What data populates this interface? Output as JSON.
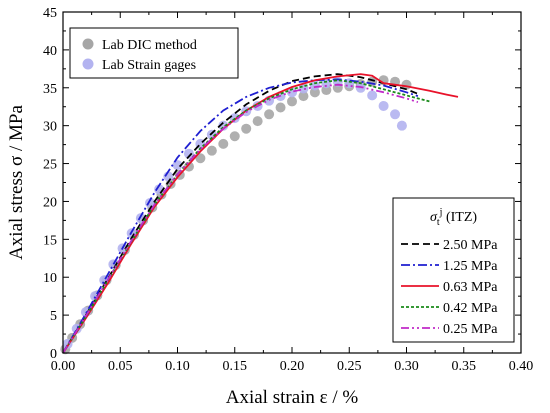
{
  "chart_data": {
    "type": "line",
    "xlabel": "Axial strain ε / %",
    "ylabel": "Axial stress σ / MPa",
    "xlim": [
      0,
      0.4
    ],
    "ylim": [
      0,
      45
    ],
    "xticks": [
      "0.00",
      "0.05",
      "0.10",
      "0.15",
      "0.20",
      "0.25",
      "0.30",
      "0.35",
      "0.40"
    ],
    "yticks": [
      "0",
      "5",
      "10",
      "15",
      "20",
      "25",
      "30",
      "35",
      "40",
      "45"
    ],
    "grid": false,
    "legend_markers": {
      "placement": "top-left",
      "entries": [
        "Lab DIC method",
        "Lab Strain gages"
      ]
    },
    "legend_lines": {
      "placement": "bottom-right",
      "title": "σ_t^j (ITZ)",
      "title_main": "σ",
      "title_sub": "t",
      "title_sup": "j",
      "title_rest": " (ITZ)"
    },
    "scatter_series": [
      {
        "name": "Lab DIC method",
        "color": "#a6a6a6",
        "points": [
          [
            0.002,
            0.5
          ],
          [
            0.008,
            2
          ],
          [
            0.015,
            3.8
          ],
          [
            0.022,
            5.6
          ],
          [
            0.03,
            7.6
          ],
          [
            0.038,
            9.6
          ],
          [
            0.046,
            11.6
          ],
          [
            0.054,
            13.6
          ],
          [
            0.062,
            15.6
          ],
          [
            0.07,
            17.5
          ],
          [
            0.078,
            19.2
          ],
          [
            0.086,
            20.9
          ],
          [
            0.094,
            22.3
          ],
          [
            0.102,
            23.5
          ],
          [
            0.11,
            24.6
          ],
          [
            0.12,
            25.7
          ],
          [
            0.13,
            26.7
          ],
          [
            0.14,
            27.6
          ],
          [
            0.15,
            28.6
          ],
          [
            0.16,
            29.6
          ],
          [
            0.17,
            30.6
          ],
          [
            0.18,
            31.5
          ],
          [
            0.19,
            32.4
          ],
          [
            0.2,
            33.2
          ],
          [
            0.21,
            33.9
          ],
          [
            0.22,
            34.4
          ],
          [
            0.23,
            34.7
          ],
          [
            0.24,
            35
          ],
          [
            0.25,
            35.2
          ],
          [
            0.26,
            35.5
          ],
          [
            0.27,
            35.8
          ],
          [
            0.28,
            36
          ],
          [
            0.29,
            35.8
          ],
          [
            0.3,
            35.4
          ]
        ]
      },
      {
        "name": "Lab Strain gages",
        "color": "#b3b3f0",
        "points": [
          [
            0.004,
            1.2
          ],
          [
            0.012,
            3.2
          ],
          [
            0.02,
            5.4
          ],
          [
            0.028,
            7.5
          ],
          [
            0.036,
            9.6
          ],
          [
            0.044,
            11.7
          ],
          [
            0.052,
            13.8
          ],
          [
            0.06,
            15.8
          ],
          [
            0.068,
            17.8
          ],
          [
            0.076,
            19.8
          ],
          [
            0.084,
            21.6
          ],
          [
            0.092,
            23.3
          ],
          [
            0.1,
            24.8
          ],
          [
            0.11,
            26.3
          ],
          [
            0.12,
            27.6
          ],
          [
            0.13,
            28.8
          ],
          [
            0.14,
            30
          ],
          [
            0.15,
            31
          ],
          [
            0.16,
            31.9
          ],
          [
            0.17,
            32.6
          ],
          [
            0.18,
            33.3
          ],
          [
            0.19,
            33.9
          ],
          [
            0.2,
            34.4
          ],
          [
            0.21,
            34.9
          ],
          [
            0.22,
            35.3
          ],
          [
            0.23,
            35.6
          ],
          [
            0.24,
            35.8
          ],
          [
            0.25,
            35.6
          ],
          [
            0.26,
            35
          ],
          [
            0.27,
            34
          ],
          [
            0.28,
            32.6
          ],
          [
            0.29,
            31.5
          ],
          [
            0.296,
            30
          ]
        ]
      }
    ],
    "line_series": [
      {
        "name": "2.50 MPa",
        "color": "#000000",
        "dash": "7,4",
        "points": [
          [
            0,
            0
          ],
          [
            0.02,
            5
          ],
          [
            0.04,
            10
          ],
          [
            0.06,
            15.2
          ],
          [
            0.08,
            20
          ],
          [
            0.1,
            24.3
          ],
          [
            0.12,
            27.6
          ],
          [
            0.14,
            30.4
          ],
          [
            0.16,
            32.8
          ],
          [
            0.18,
            34.6
          ],
          [
            0.2,
            35.9
          ],
          [
            0.22,
            36.5
          ],
          [
            0.24,
            36.8
          ],
          [
            0.26,
            36.4
          ],
          [
            0.28,
            35.6
          ],
          [
            0.3,
            34.8
          ],
          [
            0.31,
            34.2
          ]
        ]
      },
      {
        "name": "1.25 MPa",
        "color": "#1f1fd1",
        "dash": "9,3,2,3",
        "points": [
          [
            0,
            0
          ],
          [
            0.02,
            5.2
          ],
          [
            0.04,
            10.6
          ],
          [
            0.06,
            16
          ],
          [
            0.08,
            21.2
          ],
          [
            0.1,
            25.8
          ],
          [
            0.12,
            29.3
          ],
          [
            0.14,
            32
          ],
          [
            0.16,
            33.8
          ],
          [
            0.18,
            35
          ],
          [
            0.2,
            35.7
          ],
          [
            0.22,
            36
          ],
          [
            0.24,
            36.1
          ],
          [
            0.26,
            35.8
          ],
          [
            0.28,
            35.3
          ],
          [
            0.3,
            34.4
          ],
          [
            0.31,
            33.9
          ]
        ]
      },
      {
        "name": "0.63 MPa",
        "color": "#e8122a",
        "dash": "",
        "points": [
          [
            0,
            0
          ],
          [
            0.02,
            4.6
          ],
          [
            0.04,
            9.4
          ],
          [
            0.06,
            14.5
          ],
          [
            0.08,
            19.3
          ],
          [
            0.1,
            23.2
          ],
          [
            0.12,
            26.6
          ],
          [
            0.14,
            29.6
          ],
          [
            0.16,
            32
          ],
          [
            0.18,
            33.8
          ],
          [
            0.2,
            35.1
          ],
          [
            0.22,
            36
          ],
          [
            0.24,
            36.5
          ],
          [
            0.26,
            36.8
          ],
          [
            0.27,
            36.6
          ],
          [
            0.28,
            35.6
          ],
          [
            0.3,
            35.2
          ],
          [
            0.32,
            34.6
          ],
          [
            0.335,
            34.1
          ],
          [
            0.345,
            33.8
          ]
        ]
      },
      {
        "name": "0.42 MPa",
        "color": "#1a8a1a",
        "dash": "3,2",
        "points": [
          [
            0,
            0
          ],
          [
            0.02,
            4.8
          ],
          [
            0.04,
            9.8
          ],
          [
            0.06,
            14.8
          ],
          [
            0.08,
            19.6
          ],
          [
            0.1,
            23.6
          ],
          [
            0.12,
            27
          ],
          [
            0.14,
            29.8
          ],
          [
            0.16,
            32
          ],
          [
            0.18,
            33.6
          ],
          [
            0.2,
            34.8
          ],
          [
            0.22,
            35.6
          ],
          [
            0.24,
            36
          ],
          [
            0.26,
            35.6
          ],
          [
            0.28,
            34.8
          ],
          [
            0.3,
            34
          ],
          [
            0.32,
            33.2
          ]
        ]
      },
      {
        "name": "0.25 MPa",
        "color": "#c02ac8",
        "dash": "8,3,2,3,2,3",
        "points": [
          [
            0,
            0
          ],
          [
            0.02,
            4.9
          ],
          [
            0.04,
            9.9
          ],
          [
            0.06,
            14.9
          ],
          [
            0.08,
            19.6
          ],
          [
            0.1,
            23.6
          ],
          [
            0.12,
            26.9
          ],
          [
            0.14,
            29.6
          ],
          [
            0.16,
            31.8
          ],
          [
            0.18,
            33.4
          ],
          [
            0.2,
            34.5
          ],
          [
            0.22,
            35.1
          ],
          [
            0.24,
            35.4
          ],
          [
            0.26,
            35.1
          ],
          [
            0.28,
            34.4
          ],
          [
            0.3,
            33.6
          ],
          [
            0.31,
            33.1
          ]
        ]
      }
    ]
  }
}
